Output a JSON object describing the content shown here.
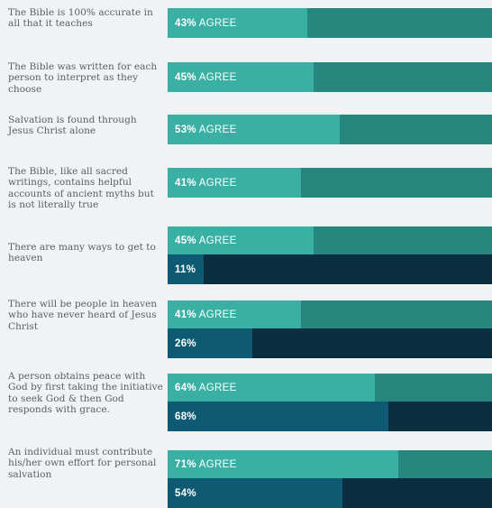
{
  "chart_data": {
    "type": "bar",
    "orientation": "horizontal",
    "xlim": [
      0,
      100
    ],
    "colors": {
      "agree_fill": "#3aafa3",
      "agree_track": "#27877e",
      "second_fill": "#0f5a73",
      "second_track": "#0b2f40",
      "background": "#f0f2f4"
    },
    "rows": [
      {
        "label": "The Bible is 100% accurate in all that it teaches",
        "bars": [
          {
            "value": 43,
            "text": "43%",
            "suffix": " AGREE",
            "style": "agree"
          }
        ]
      },
      {
        "label": "The Bible was written for each person to interpret as they choose",
        "bars": [
          {
            "value": 45,
            "text": "45%",
            "suffix": " AGREE",
            "style": "agree"
          }
        ]
      },
      {
        "label": "Salvation is found through Jesus Christ alone",
        "bars": [
          {
            "value": 53,
            "text": "53%",
            "suffix": " AGREE",
            "style": "agree"
          }
        ]
      },
      {
        "label": "The Bible, like all sacred writings, contains helpful accounts of ancient myths but is not literally true",
        "bars": [
          {
            "value": 41,
            "text": "41%",
            "suffix": " AGREE",
            "style": "agree"
          }
        ]
      },
      {
        "label": "There are many ways to get to heaven",
        "bars": [
          {
            "value": 45,
            "text": "45%",
            "suffix": " AGREE",
            "style": "agree"
          },
          {
            "value": 11,
            "text": "11%",
            "suffix": "",
            "style": "second"
          }
        ]
      },
      {
        "label": "There will be people in heaven who have never heard of Jesus Christ",
        "bars": [
          {
            "value": 41,
            "text": "41%",
            "suffix": " AGREE",
            "style": "agree"
          },
          {
            "value": 26,
            "text": "26%",
            "suffix": "",
            "style": "second"
          }
        ]
      },
      {
        "label": "A person obtains peace with God by first taking the initiative to seek God & then God responds with grace.",
        "bars": [
          {
            "value": 64,
            "text": "64%",
            "suffix": " AGREE",
            "style": "agree"
          },
          {
            "value": 68,
            "text": "68%",
            "suffix": "",
            "style": "second"
          }
        ]
      },
      {
        "label": "An individual must contribute his/her own effort for personal salvation",
        "bars": [
          {
            "value": 71,
            "text": "71%",
            "suffix": " AGREE",
            "style": "agree"
          },
          {
            "value": 54,
            "text": "54%",
            "suffix": "",
            "style": "second"
          }
        ]
      }
    ]
  }
}
